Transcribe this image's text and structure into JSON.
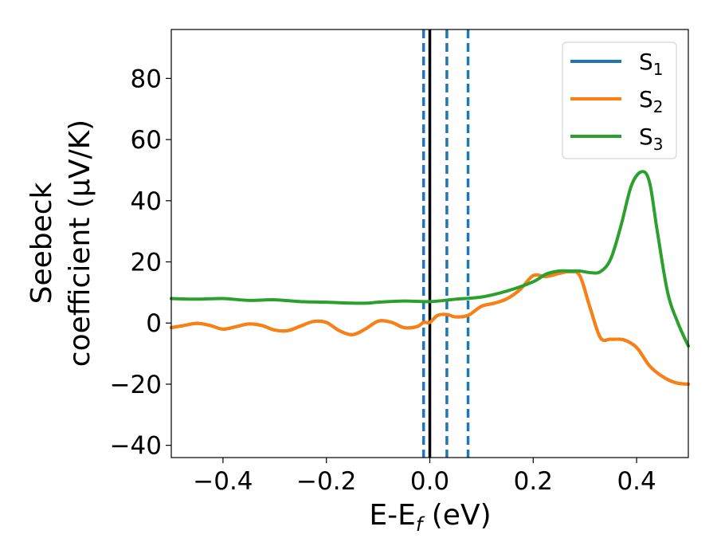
{
  "chart_data": {
    "type": "line",
    "xlabel": {
      "main": "E-E",
      "sub": "f",
      "unit": " (eV)"
    },
    "ylabel": {
      "line1": "Seebeck",
      "line2": "coefficient  (μV/K)"
    },
    "xlim": [
      -0.5,
      0.5
    ],
    "ylim": [
      -44,
      96
    ],
    "xticks": [
      -0.4,
      -0.2,
      0.0,
      0.2,
      0.4
    ],
    "xtick_labels": [
      "−0.4",
      "−0.2",
      "0.0",
      "0.2",
      "0.4"
    ],
    "yticks": [
      -40,
      -20,
      0,
      20,
      40,
      60,
      80
    ],
    "ytick_labels": [
      "−40",
      "−20",
      "0",
      "20",
      "40",
      "60",
      "80"
    ],
    "legend_position": "top-right",
    "reference_lines": [
      {
        "x": -0.012,
        "style": "dashed",
        "color": "#1f77b4"
      },
      {
        "x": 0.033,
        "style": "dashed",
        "color": "#1f77b4"
      },
      {
        "x": 0.074,
        "style": "dashed",
        "color": "#1f77b4"
      },
      {
        "x": 0.0,
        "style": "solid",
        "color": "#000000"
      }
    ],
    "series": [
      {
        "name": "S",
        "sub": "1",
        "color": "#1f77b4",
        "x": [
          -0.5,
          -0.475,
          -0.45,
          -0.425,
          -0.4,
          -0.375,
          -0.35,
          -0.325,
          -0.3,
          -0.275,
          -0.25,
          -0.225,
          -0.2,
          -0.175,
          -0.15,
          -0.125,
          -0.1,
          -0.075,
          -0.05,
          -0.025,
          -0.012,
          0.0,
          0.015,
          0.033,
          0.05,
          0.074,
          0.1,
          0.125,
          0.15,
          0.175,
          0.2,
          0.225,
          0.25,
          0.27,
          0.29,
          0.31,
          0.33,
          0.35,
          0.375,
          0.4,
          0.425,
          0.45,
          0.475,
          0.5
        ],
        "y": [
          -1.5,
          -0.8,
          -0.1,
          -0.8,
          -2.0,
          -1.2,
          -0.3,
          -0.8,
          -2.3,
          -2.5,
          -1.0,
          0.5,
          0.2,
          -2.5,
          -3.8,
          -2.0,
          0.6,
          0.3,
          -1.5,
          -1.2,
          0.2,
          0.2,
          2.5,
          2.8,
          2.0,
          2.5,
          5.5,
          6.5,
          8.0,
          11.0,
          15.5,
          15.2,
          16.2,
          16.8,
          15.5,
          5.0,
          -4.8,
          -5.3,
          -5.5,
          -8.0,
          -14.0,
          -17.5,
          -19.5,
          -20.0
        ]
      },
      {
        "name": "S",
        "sub": "2",
        "color": "#ff7f0e",
        "x": [
          -0.5,
          -0.475,
          -0.45,
          -0.425,
          -0.4,
          -0.375,
          -0.35,
          -0.325,
          -0.3,
          -0.275,
          -0.25,
          -0.225,
          -0.2,
          -0.175,
          -0.15,
          -0.125,
          -0.1,
          -0.075,
          -0.05,
          -0.025,
          -0.012,
          0.0,
          0.015,
          0.033,
          0.05,
          0.074,
          0.1,
          0.125,
          0.15,
          0.175,
          0.2,
          0.225,
          0.25,
          0.27,
          0.29,
          0.31,
          0.33,
          0.35,
          0.375,
          0.4,
          0.425,
          0.45,
          0.475,
          0.5
        ],
        "y": [
          -1.5,
          -0.8,
          -0.1,
          -0.8,
          -2.0,
          -1.2,
          -0.3,
          -0.8,
          -2.3,
          -2.5,
          -1.0,
          0.5,
          0.2,
          -2.5,
          -3.8,
          -2.0,
          0.6,
          0.3,
          -1.5,
          -1.2,
          0.2,
          0.2,
          2.5,
          2.8,
          2.0,
          2.5,
          5.5,
          6.5,
          8.0,
          11.0,
          15.5,
          15.2,
          16.2,
          16.8,
          15.5,
          5.0,
          -4.8,
          -5.3,
          -5.5,
          -8.0,
          -14.0,
          -17.5,
          -19.5,
          -20.0
        ]
      },
      {
        "name": "S",
        "sub": "3",
        "color": "#2ca02c",
        "x": [
          -0.5,
          -0.45,
          -0.4,
          -0.35,
          -0.3,
          -0.25,
          -0.2,
          -0.15,
          -0.12,
          -0.1,
          -0.05,
          0.0,
          0.05,
          0.1,
          0.15,
          0.2,
          0.225,
          0.25,
          0.27,
          0.29,
          0.31,
          0.33,
          0.35,
          0.37,
          0.39,
          0.41,
          0.425,
          0.44,
          0.46,
          0.48,
          0.5
        ],
        "y": [
          8.0,
          7.8,
          8.0,
          7.4,
          7.6,
          7.0,
          6.8,
          6.5,
          6.5,
          6.8,
          7.2,
          7.0,
          7.8,
          8.5,
          10.5,
          13.5,
          16.0,
          17.0,
          17.0,
          17.0,
          16.5,
          16.8,
          21.0,
          32.0,
          45.0,
          49.5,
          46.0,
          30.0,
          10.0,
          0.0,
          -7.5
        ]
      }
    ]
  }
}
